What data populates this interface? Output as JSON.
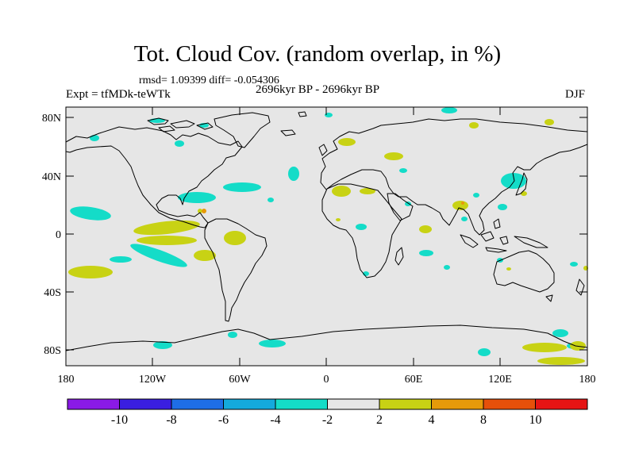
{
  "title": "Tot. Cloud Cov. (random overlap, in %)",
  "stats": "rmsd= 1.09399 diff= -0.054306",
  "experiment": "Expt = tfMDk-teWTk",
  "period": "2696kyr BP - 2696kyr BP",
  "season": "DJF",
  "map": {
    "projection": "cylindrical equidistant",
    "lon_ticks": [
      "180",
      "120W",
      "60W",
      "0",
      "60E",
      "120E",
      "180"
    ],
    "lat_ticks": [
      "80N",
      "40N",
      "0",
      "40S",
      "80S"
    ],
    "land_color": "#e6e6e6",
    "coast_color": "#000000"
  },
  "colorbar": {
    "labels": [
      "-10",
      "-8",
      "-6",
      "-4",
      "-2",
      "2",
      "4",
      "8",
      "10"
    ],
    "colors": [
      "#8a1ae6",
      "#3a1ee0",
      "#1e6ee6",
      "#14aadc",
      "#14dcc8",
      "#e6e6e6",
      "#c8d214",
      "#e69a0a",
      "#e6500a",
      "#e61414"
    ]
  },
  "anomaly_colors": {
    "neg_2_4": "#14dcc8",
    "neg_4_6": "#14aadc",
    "pos_2_4": "#c8d214",
    "pos_4_8": "#e69a0a"
  }
}
